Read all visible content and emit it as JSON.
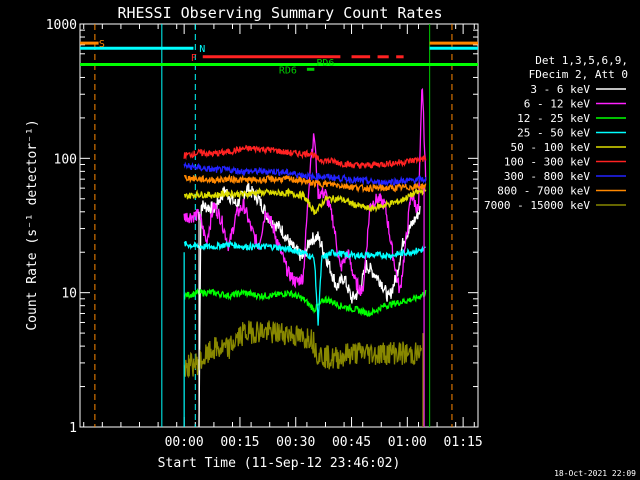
{
  "chart_data": {
    "type": "line",
    "title": "RHESSI Observing Summary Count Rates",
    "xlabel": "Start Time (11-Sep-12 23:46:02)",
    "ylabel": "Count Rate (s⁻¹ detector⁻¹)",
    "yscale": "log",
    "ylim": [
      1,
      1000
    ],
    "xlim_minutes": [
      -14,
      93
    ],
    "x_ticks": [
      {
        "label": "00:00",
        "min": 14
      },
      {
        "label": "00:15",
        "min": 29
      },
      {
        "label": "00:30",
        "min": 44
      },
      {
        "label": "00:45",
        "min": 59
      },
      {
        "label": "01:00",
        "min": 74
      },
      {
        "label": "01:15",
        "min": 89
      }
    ],
    "y_ticks": [
      {
        "label": "1",
        "value": 1
      },
      {
        "label": "10",
        "value": 10
      },
      {
        "label": "100",
        "value": 100
      },
      {
        "label": "1000",
        "value": 1000
      }
    ],
    "legend": {
      "header": [
        "Det 1,3,5,6,9,",
        "FDecim 2, Att 0"
      ],
      "placement": "right"
    },
    "series": [
      {
        "name": "3 - 6 keV",
        "color": "#ffffff",
        "points": [
          [
            18,
            1
          ],
          [
            18.5,
            45
          ],
          [
            22,
            42
          ],
          [
            25,
            58
          ],
          [
            28,
            45
          ],
          [
            31,
            60
          ],
          [
            34,
            50
          ],
          [
            37,
            35
          ],
          [
            40,
            30
          ],
          [
            43,
            22
          ],
          [
            46,
            18
          ],
          [
            48,
            25
          ],
          [
            50,
            26
          ],
          [
            53,
            16
          ],
          [
            55,
            11
          ],
          [
            57,
            13
          ],
          [
            59,
            9
          ],
          [
            61,
            10
          ],
          [
            63,
            16
          ],
          [
            65,
            14
          ],
          [
            67,
            12
          ],
          [
            69,
            9
          ],
          [
            71,
            13
          ],
          [
            73,
            25
          ],
          [
            76,
            35
          ],
          [
            77.5,
            42
          ]
        ]
      },
      {
        "name": "6 - 12 keV",
        "color": "#ff22ff",
        "points": [
          [
            14,
            37
          ],
          [
            16,
            37
          ],
          [
            18,
            38
          ],
          [
            20,
            24
          ],
          [
            22,
            45
          ],
          [
            24,
            35
          ],
          [
            26,
            22
          ],
          [
            28,
            38
          ],
          [
            30,
            45
          ],
          [
            32,
            30
          ],
          [
            34,
            22
          ],
          [
            36,
            42
          ],
          [
            38,
            30
          ],
          [
            40,
            20
          ],
          [
            42,
            14
          ],
          [
            44,
            12
          ],
          [
            46,
            13
          ],
          [
            48,
            100
          ],
          [
            49,
            150
          ],
          [
            50,
            55
          ],
          [
            52,
            55
          ],
          [
            54,
            35
          ],
          [
            56,
            15
          ],
          [
            58,
            20
          ],
          [
            60,
            12
          ],
          [
            62,
            10
          ],
          [
            64,
            45
          ],
          [
            66,
            50
          ],
          [
            68,
            45
          ],
          [
            70,
            20
          ],
          [
            72,
            10
          ],
          [
            74,
            30
          ],
          [
            75,
            55
          ],
          [
            77,
            40
          ],
          [
            78,
            380
          ],
          [
            79,
            60
          ]
        ]
      },
      {
        "name": "12 - 25 keV",
        "color": "#00ff00",
        "points": [
          [
            14,
            9.5
          ],
          [
            18,
            10
          ],
          [
            22,
            10
          ],
          [
            26,
            9.5
          ],
          [
            30,
            10
          ],
          [
            34,
            9.5
          ],
          [
            38,
            9.5
          ],
          [
            42,
            10
          ],
          [
            46,
            9
          ],
          [
            49,
            7.5
          ],
          [
            52,
            9
          ],
          [
            56,
            8
          ],
          [
            60,
            7.5
          ],
          [
            64,
            7
          ],
          [
            68,
            8
          ],
          [
            72,
            8.5
          ],
          [
            76,
            9
          ],
          [
            79,
            10
          ]
        ]
      },
      {
        "name": "25 - 50 keV",
        "color": "#00ffff",
        "points": [
          [
            14,
            23
          ],
          [
            18,
            22
          ],
          [
            22,
            22
          ],
          [
            26,
            23
          ],
          [
            30,
            22
          ],
          [
            34,
            22
          ],
          [
            38,
            22
          ],
          [
            42,
            21
          ],
          [
            46,
            20
          ],
          [
            49,
            18
          ],
          [
            50,
            6
          ],
          [
            51,
            18
          ],
          [
            54,
            20
          ],
          [
            58,
            19
          ],
          [
            62,
            19
          ],
          [
            66,
            19
          ],
          [
            70,
            19
          ],
          [
            74,
            20
          ],
          [
            79,
            21
          ]
        ]
      },
      {
        "name": "50 - 100 keV",
        "color": "#dddd00",
        "points": [
          [
            14,
            52
          ],
          [
            18,
            54
          ],
          [
            22,
            53
          ],
          [
            26,
            55
          ],
          [
            30,
            54
          ],
          [
            34,
            56
          ],
          [
            38,
            55
          ],
          [
            42,
            55
          ],
          [
            46,
            53
          ],
          [
            49,
            40
          ],
          [
            50,
            42
          ],
          [
            52,
            50
          ],
          [
            56,
            50
          ],
          [
            60,
            45
          ],
          [
            64,
            42
          ],
          [
            68,
            45
          ],
          [
            72,
            48
          ],
          [
            76,
            55
          ],
          [
            79,
            58
          ]
        ]
      },
      {
        "name": "100 - 300 keV",
        "color": "#ff2222",
        "points": [
          [
            14,
            105
          ],
          [
            18,
            110
          ],
          [
            22,
            108
          ],
          [
            26,
            112
          ],
          [
            30,
            118
          ],
          [
            34,
            118
          ],
          [
            38,
            115
          ],
          [
            42,
            110
          ],
          [
            46,
            108
          ],
          [
            48,
            110
          ],
          [
            50,
            98
          ],
          [
            54,
            95
          ],
          [
            58,
            90
          ],
          [
            62,
            88
          ],
          [
            66,
            90
          ],
          [
            70,
            92
          ],
          [
            74,
            95
          ],
          [
            79,
            100
          ]
        ]
      },
      {
        "name": "300 - 800 keV",
        "color": "#2222ff",
        "points": [
          [
            14,
            88
          ],
          [
            18,
            85
          ],
          [
            22,
            82
          ],
          [
            26,
            82
          ],
          [
            30,
            80
          ],
          [
            34,
            80
          ],
          [
            38,
            80
          ],
          [
            42,
            78
          ],
          [
            46,
            75
          ],
          [
            49,
            72
          ],
          [
            50,
            74
          ],
          [
            54,
            72
          ],
          [
            58,
            70
          ],
          [
            62,
            68
          ],
          [
            66,
            66
          ],
          [
            70,
            67
          ],
          [
            74,
            68
          ],
          [
            79,
            70
          ]
        ]
      },
      {
        "name": "800 - 7000 keV",
        "color": "#ff8800",
        "points": [
          [
            14,
            72
          ],
          [
            18,
            70
          ],
          [
            22,
            69
          ],
          [
            26,
            70
          ],
          [
            30,
            69
          ],
          [
            34,
            69
          ],
          [
            38,
            70
          ],
          [
            42,
            70
          ],
          [
            46,
            68
          ],
          [
            49,
            65
          ],
          [
            50,
            65
          ],
          [
            54,
            64
          ],
          [
            58,
            62
          ],
          [
            62,
            60
          ],
          [
            66,
            60
          ],
          [
            70,
            60
          ],
          [
            74,
            61
          ],
          [
            79,
            62
          ]
        ]
      },
      {
        "name": "7000 - 15000 keV",
        "color": "#888800",
        "points": [
          [
            14,
            2.8
          ],
          [
            18,
            3
          ],
          [
            22,
            3.8
          ],
          [
            26,
            3.8
          ],
          [
            28,
            4.5
          ],
          [
            30,
            5
          ],
          [
            34,
            5.2
          ],
          [
            38,
            5
          ],
          [
            42,
            5
          ],
          [
            46,
            4.5
          ],
          [
            48,
            4.8
          ],
          [
            50,
            3.5
          ],
          [
            54,
            3.2
          ],
          [
            58,
            3.5
          ],
          [
            62,
            3.6
          ],
          [
            66,
            3.5
          ],
          [
            70,
            3.6
          ],
          [
            74,
            3.5
          ],
          [
            78,
            3.5
          ]
        ]
      }
    ],
    "annotations": [
      {
        "label": "S",
        "color": "#ff8800"
      },
      {
        "label": "N",
        "color": "#00ffff"
      },
      {
        "label": "F",
        "color": "#ff2222"
      },
      {
        "label": "RD6",
        "color": "#00cc00"
      },
      {
        "label": "PD6",
        "color": "#00cc00"
      }
    ],
    "timestamp": "18-Oct-2021 22:09"
  }
}
